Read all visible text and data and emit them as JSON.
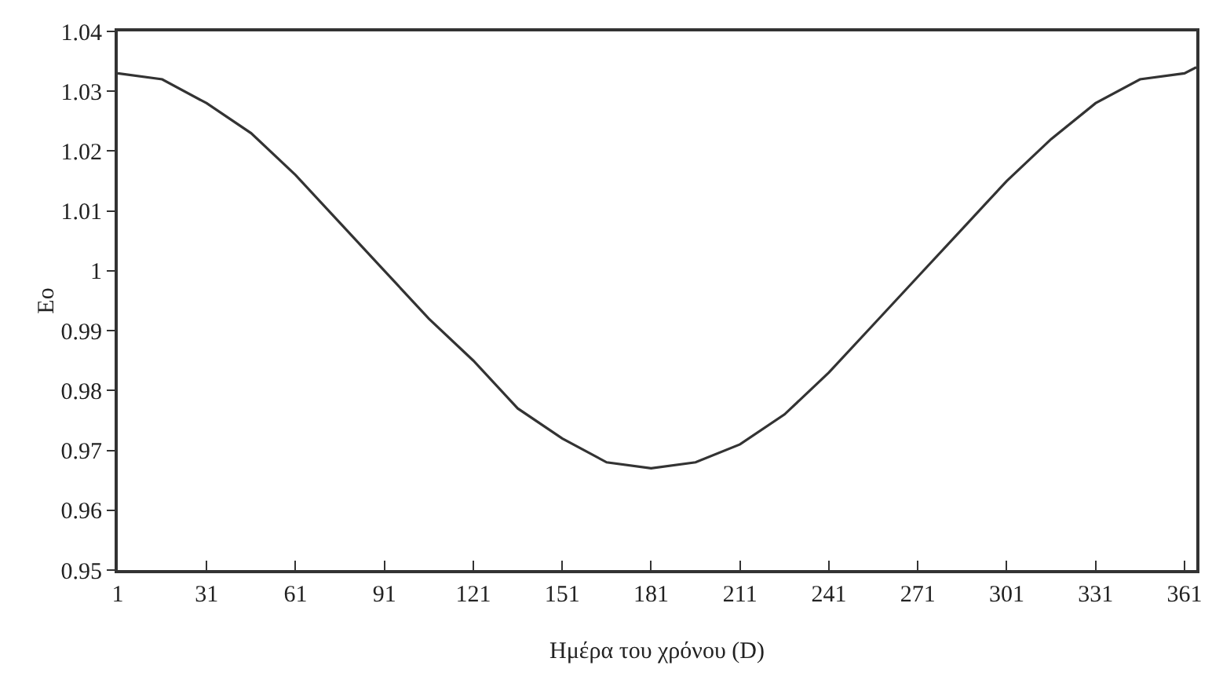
{
  "chart_data": {
    "type": "line",
    "xlabel": "Ημέρα του χρόνου (D)",
    "ylabel": "Eo",
    "x": [
      1,
      16,
      31,
      46,
      61,
      76,
      91,
      106,
      121,
      136,
      151,
      166,
      181,
      196,
      211,
      226,
      241,
      256,
      271,
      286,
      301,
      316,
      331,
      346,
      361,
      365
    ],
    "series": [
      {
        "color": "#333333",
        "values": [
          1.033,
          1.032,
          1.028,
          1.023,
          1.016,
          1.008,
          1.0,
          0.992,
          0.985,
          0.977,
          0.972,
          0.968,
          0.967,
          0.968,
          0.971,
          0.976,
          0.983,
          0.991,
          0.999,
          1.007,
          1.015,
          1.022,
          1.028,
          1.032,
          1.033,
          1.034
        ]
      }
    ],
    "xlim": [
      1,
      365
    ],
    "xticks": [
      1,
      31,
      61,
      91,
      121,
      151,
      181,
      211,
      241,
      271,
      301,
      331,
      361
    ],
    "ylim": [
      0.95,
      1.04
    ],
    "yticks": [
      {
        "value": 0.95,
        "label": "0.95"
      },
      {
        "value": 0.96,
        "label": "0.96"
      },
      {
        "value": 0.97,
        "label": "0.97"
      },
      {
        "value": 0.98,
        "label": "0.98"
      },
      {
        "value": 0.99,
        "label": "0.99"
      },
      1,
      {
        "value": 1.01,
        "label": "1.01"
      },
      {
        "value": 1.02,
        "label": "1.02"
      },
      {
        "value": 1.03,
        "label": "1.03"
      },
      {
        "value": 1.04,
        "label": "1.04"
      }
    ],
    "grid": false,
    "marker": "none",
    "line_style": "solid"
  }
}
